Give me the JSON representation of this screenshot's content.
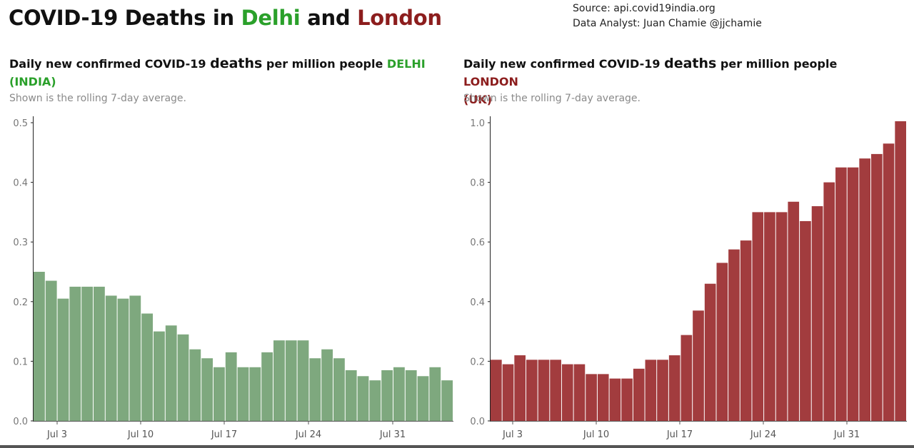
{
  "header": {
    "title_prefix": "COVID-19 Deaths in ",
    "city1": "Delhi",
    "joiner": " and ",
    "city2": "London",
    "source": "Source: api.covid19india.org",
    "analyst": "Data Analyst:  Juan Chamie @jjchamie"
  },
  "colors": {
    "delhi": "#7ea87e",
    "london": "#a23c3e",
    "delhi_text": "#2aa02a",
    "london_text": "#8c1d1d"
  },
  "panels": [
    {
      "title_a": "Daily new confirmed COVID-19 ",
      "title_big": "deaths",
      "title_b": " per million people ",
      "region": "DELHI",
      "country": "(INDIA)",
      "subtitle": "Shown is the rolling 7-day average."
    },
    {
      "title_a": "Daily new confirmed COVID-19 ",
      "title_big": "deaths",
      "title_b": " per million people ",
      "region": "LONDON",
      "country": "(UK)",
      "subtitle": "Shown is the rolling 7-day average."
    }
  ],
  "chart_data": [
    {
      "type": "bar",
      "ylim": [
        0,
        0.5
      ],
      "yticks": [
        "0.0",
        "0.1",
        "0.2",
        "0.3",
        "0.4",
        "0.5"
      ],
      "xticks": [
        "Jul 3",
        "Jul 10",
        "Jul 17",
        "Jul 24",
        "Jul 31"
      ],
      "values": [
        0.25,
        0.235,
        0.205,
        0.225,
        0.225,
        0.225,
        0.21,
        0.205,
        0.21,
        0.18,
        0.15,
        0.16,
        0.145,
        0.12,
        0.105,
        0.09,
        0.115,
        0.09,
        0.09,
        0.115,
        0.135,
        0.135,
        0.135,
        0.105,
        0.12,
        0.105,
        0.085,
        0.075,
        0.068,
        0.085,
        0.09,
        0.085,
        0.075,
        0.09,
        0.068
      ]
    },
    {
      "type": "bar",
      "ylim": [
        0,
        1.0
      ],
      "yticks": [
        "0.0",
        "0.2",
        "0.4",
        "0.6",
        "0.8",
        "1.0"
      ],
      "xticks": [
        "Jul 3",
        "Jul 10",
        "Jul 17",
        "Jul 24",
        "Jul 31"
      ],
      "values": [
        0.205,
        0.19,
        0.22,
        0.205,
        0.205,
        0.205,
        0.19,
        0.19,
        0.157,
        0.157,
        0.142,
        0.142,
        0.175,
        0.205,
        0.205,
        0.22,
        0.288,
        0.37,
        0.46,
        0.53,
        0.575,
        0.605,
        0.7,
        0.7,
        0.7,
        0.735,
        0.67,
        0.72,
        0.8,
        0.85,
        0.85,
        0.88,
        0.895,
        0.93,
        1.005
      ]
    }
  ]
}
